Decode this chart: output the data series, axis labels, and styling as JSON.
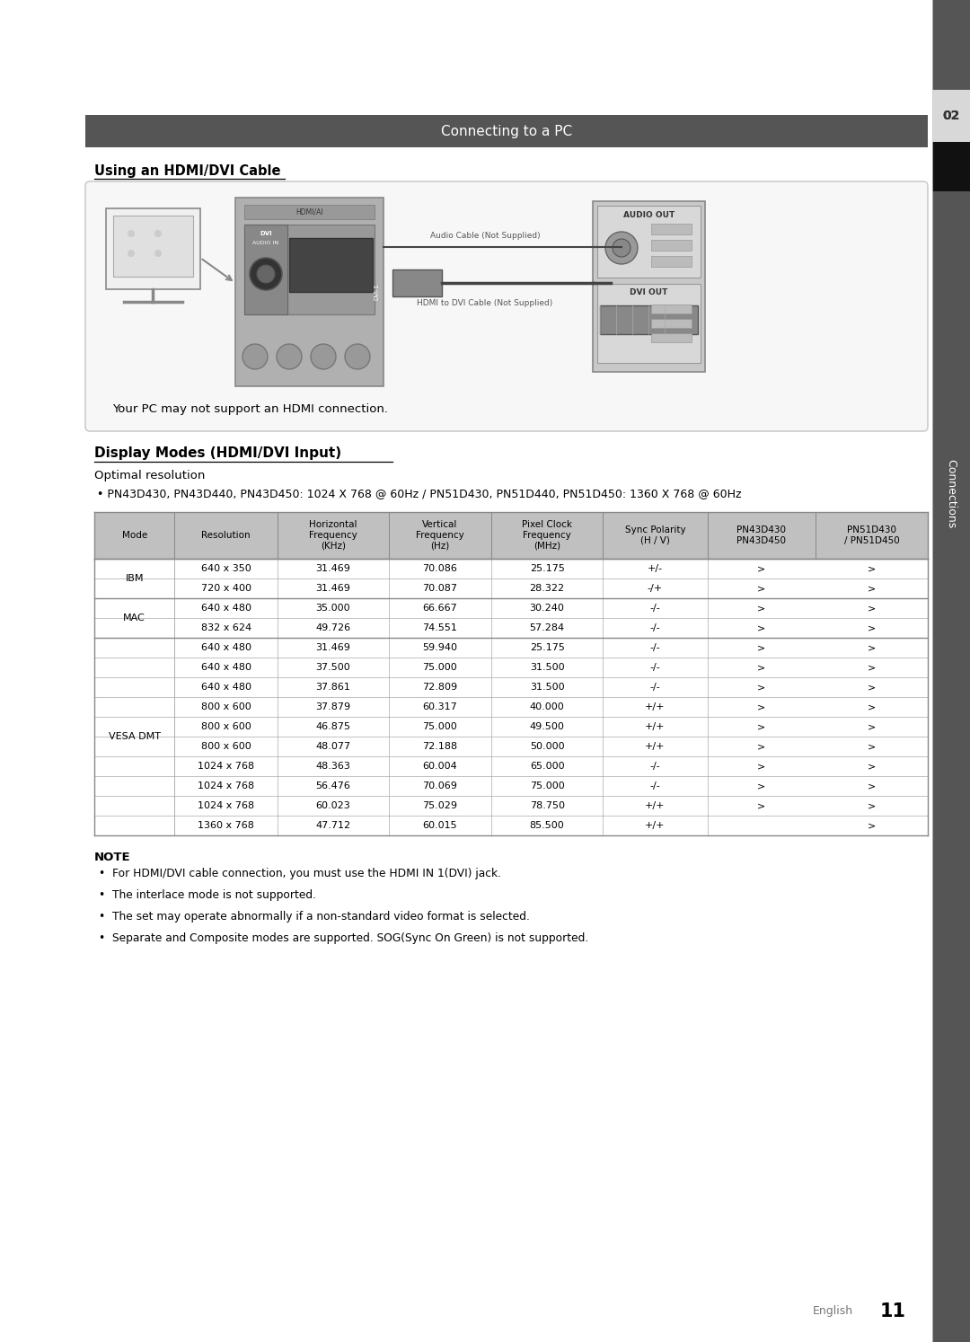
{
  "page_bg": "#ffffff",
  "title_bar_color": "#555555",
  "title_bar_text": "Connecting to a PC",
  "title_bar_text_color": "#ffffff",
  "section_title": "Using an HDMI/DVI Cable",
  "diagram_note": "Your PC may not support an HDMI connection.",
  "display_modes_title": "Display Modes (HDMI/DVI Input)",
  "optimal_resolution_label": "Optimal resolution",
  "optimal_resolution_bullet": "PN43D430, PN43D440, PN43D450: 1024 X 768 @ 60Hz / PN51D430, PN51D440, PN51D450: 1360 X 768 @ 60Hz",
  "table_header": [
    "Mode",
    "Resolution",
    "Horizontal\nFrequency\n(KHz)",
    "Vertical\nFrequency\n(Hz)",
    "Pixel Clock\nFrequency\n(MHz)",
    "Sync Polarity\n(H / V)",
    "PN43D430\nPN43D450",
    "PN51D430\n/ PN51D450"
  ],
  "table_header_bg": "#c0c0c0",
  "table_rows": [
    [
      "IBM",
      "640 x 350",
      "31.469",
      "70.086",
      "25.175",
      "+/-",
      ">",
      ">"
    ],
    [
      "IBM",
      "720 x 400",
      "31.469",
      "70.087",
      "28.322",
      "-/+",
      ">",
      ">"
    ],
    [
      "MAC",
      "640 x 480",
      "35.000",
      "66.667",
      "30.240",
      "-/-",
      ">",
      ">"
    ],
    [
      "MAC",
      "832 x 624",
      "49.726",
      "74.551",
      "57.284",
      "-/-",
      ">",
      ">"
    ],
    [
      "VESA DMT",
      "640 x 480",
      "31.469",
      "59.940",
      "25.175",
      "-/-",
      ">",
      ">"
    ],
    [
      "VESA DMT",
      "640 x 480",
      "37.500",
      "75.000",
      "31.500",
      "-/-",
      ">",
      ">"
    ],
    [
      "VESA DMT",
      "640 x 480",
      "37.861",
      "72.809",
      "31.500",
      "-/-",
      ">",
      ">"
    ],
    [
      "VESA DMT",
      "800 x 600",
      "37.879",
      "60.317",
      "40.000",
      "+/+",
      ">",
      ">"
    ],
    [
      "VESA DMT",
      "800 x 600",
      "46.875",
      "75.000",
      "49.500",
      "+/+",
      ">",
      ">"
    ],
    [
      "VESA DMT",
      "800 x 600",
      "48.077",
      "72.188",
      "50.000",
      "+/+",
      ">",
      ">"
    ],
    [
      "VESA DMT",
      "1024 x 768",
      "48.363",
      "60.004",
      "65.000",
      "-/-",
      ">",
      ">"
    ],
    [
      "VESA DMT",
      "1024 x 768",
      "56.476",
      "70.069",
      "75.000",
      "-/-",
      ">",
      ">"
    ],
    [
      "VESA DMT",
      "1024 x 768",
      "60.023",
      "75.029",
      "78.750",
      "+/+",
      ">",
      ">"
    ],
    [
      "VESA DMT",
      "1360 x 768",
      "47.712",
      "60.015",
      "85.500",
      "+/+",
      "",
      ">"
    ]
  ],
  "note_title": "NOTE",
  "note_bullets": [
    "For HDMI/DVI cable connection, you must use the HDMI IN 1(DVI) jack.",
    "The interlace mode is not supported.",
    "The set may operate abnormally if a non-standard video format is selected.",
    "Separate and Composite modes are supported. SOG(Sync On Green) is not supported."
  ],
  "page_num_text": "English",
  "page_num": "11",
  "table_border_color": "#aaaaaa",
  "table_group_border_color": "#888888",
  "col_widths_raw": [
    78,
    100,
    108,
    100,
    108,
    102,
    105,
    109
  ]
}
